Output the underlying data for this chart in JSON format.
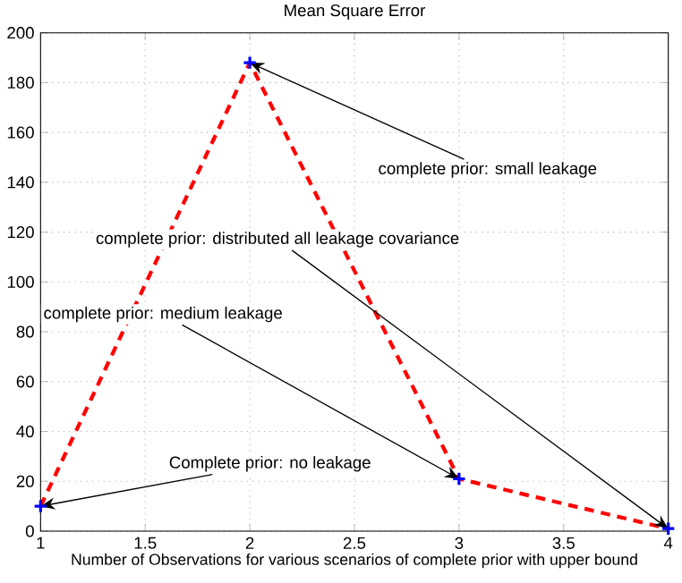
{
  "chart_data": {
    "type": "line",
    "title": "Mean Square Error",
    "xlabel": "Number of Observations for various scenarios of complete prior with upper bound",
    "x": [
      1,
      2,
      3,
      4
    ],
    "series": [
      {
        "color": "#ff0000",
        "values": [
          10,
          188,
          21,
          1
        ]
      }
    ],
    "xlim": [
      1,
      4
    ],
    "xticks": [
      1,
      1.5,
      2,
      2.5,
      3,
      3.5,
      4
    ],
    "ylim": [
      0,
      200
    ],
    "yticks": [
      0,
      20,
      40,
      60,
      80,
      100,
      120,
      140,
      160,
      180,
      200
    ],
    "grid": true,
    "marker": "cross",
    "line_style": "dashed",
    "annotations": [
      {
        "text": "complete prior: small leakage",
        "x": 2,
        "y": 188
      },
      {
        "text": "complete prior: distributed all leakage covariance",
        "x": 4,
        "y": 1
      },
      {
        "text": "complete prior: medium leakage",
        "x": 3,
        "y": 21
      },
      {
        "text": "Complete prior: no leakage",
        "x": 1,
        "y": 10
      }
    ]
  }
}
